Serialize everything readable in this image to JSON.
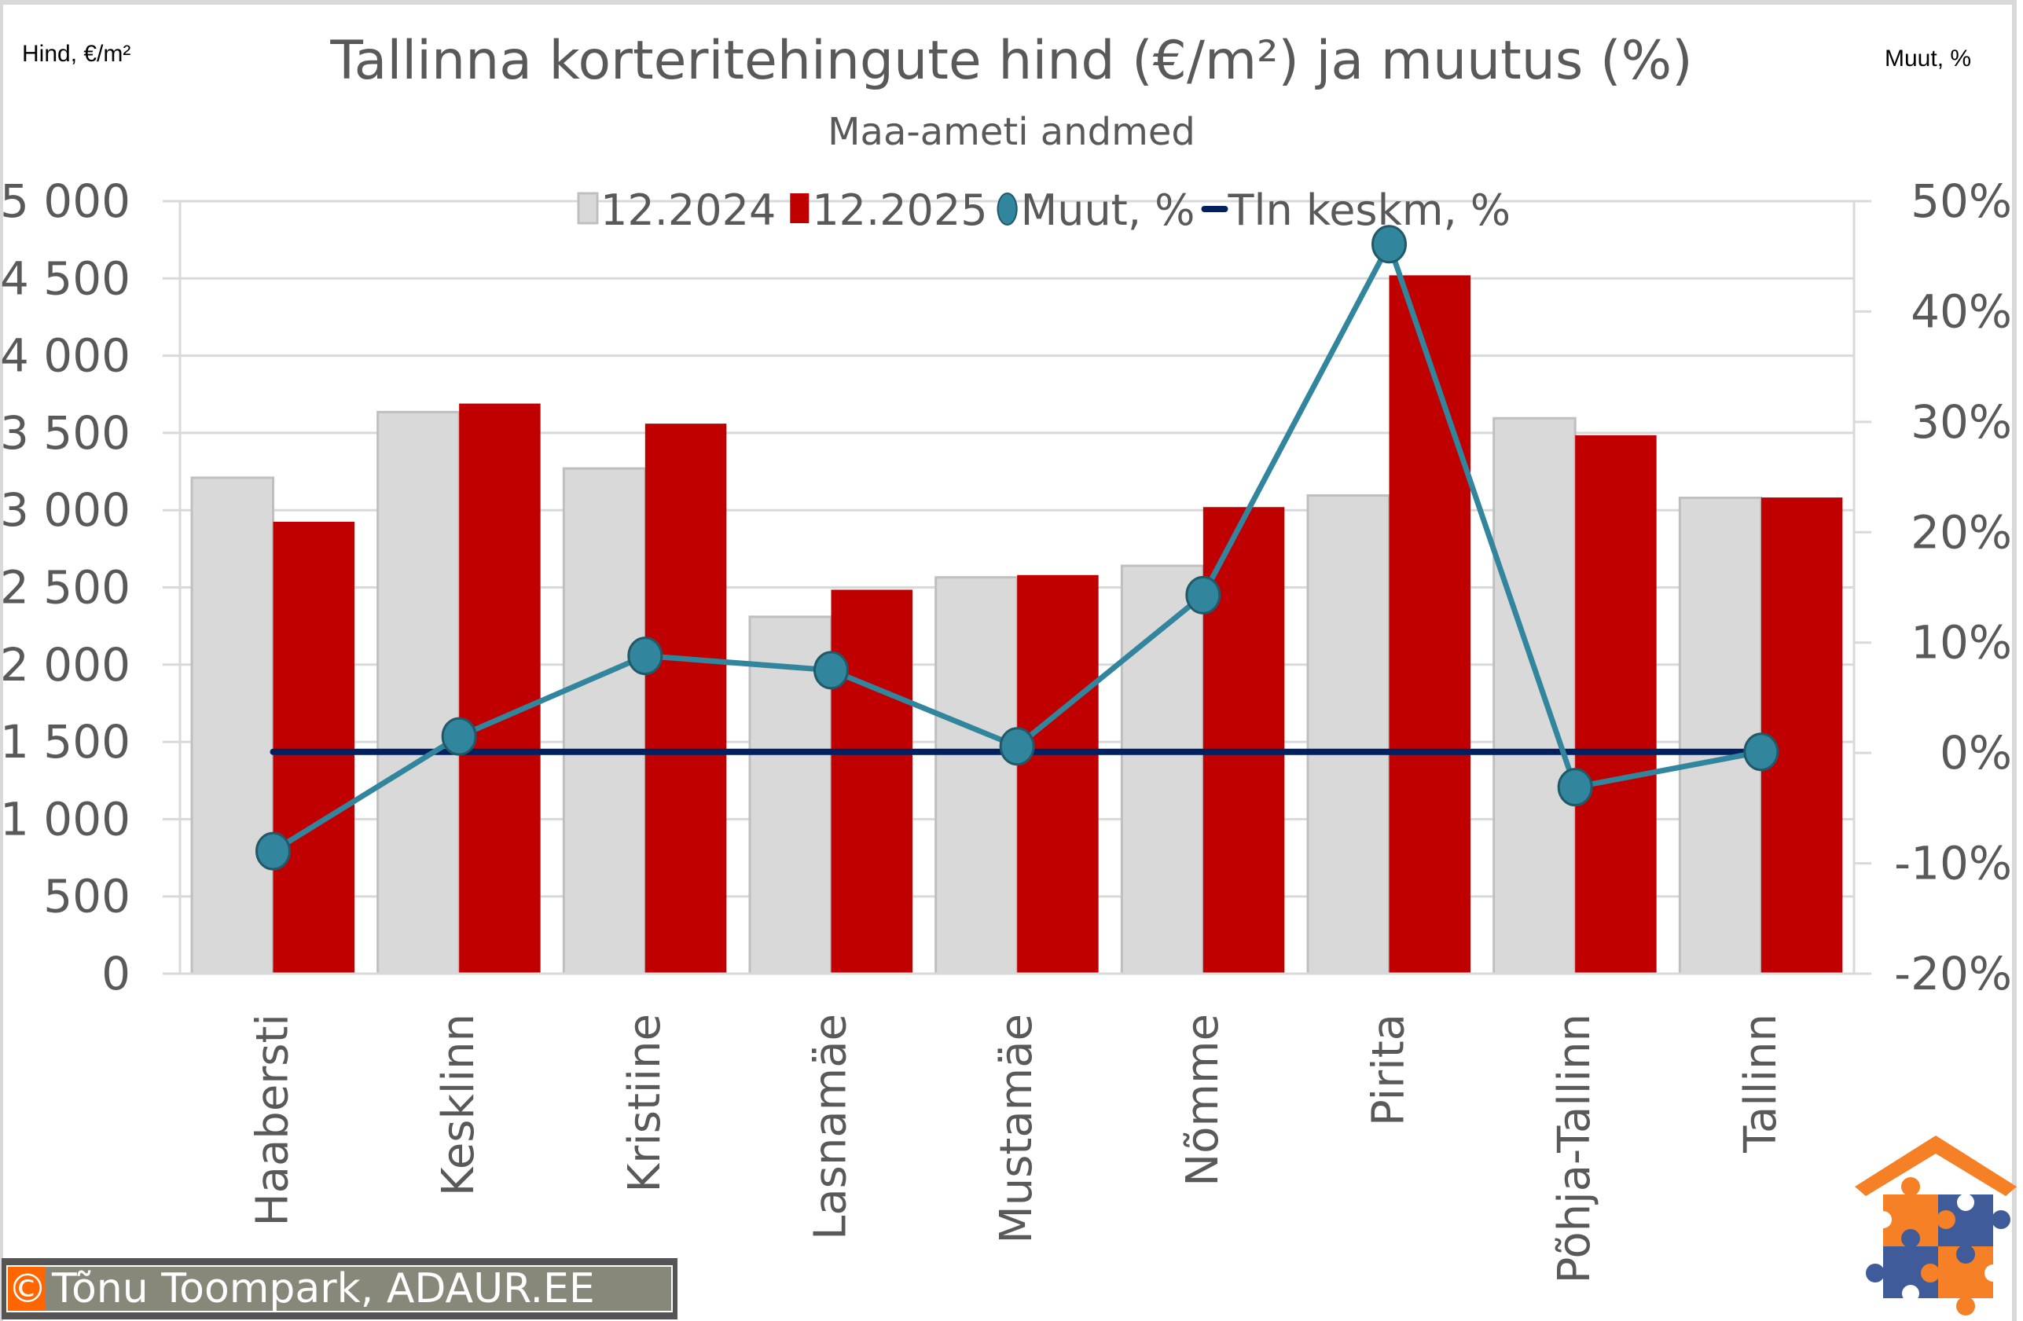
{
  "header": {
    "title": "Tallinna korteritehingute hind (€/m²) ja muutus (%)",
    "subtitle": "Maa-ameti andmed",
    "left_axis_unit": "Hind, €/m²",
    "right_axis_unit": "Muut, %"
  },
  "legend": {
    "items": [
      {
        "label": "12.2024",
        "type": "bar",
        "color": "#d9d9d9"
      },
      {
        "label": "12.2025",
        "type": "bar",
        "color": "#c00000"
      },
      {
        "label": "Muut, %",
        "type": "line-marker",
        "color": "#31859c"
      },
      {
        "label": "Tln keskm, %",
        "type": "line",
        "color": "#002060"
      }
    ]
  },
  "footer": {
    "copyright_symbol": "©",
    "copyright_text": "Tõnu Toompark, ADAUR.EE"
  },
  "logo": {
    "name": "adaur-house-puzzle-logo",
    "colors": [
      "#f58025",
      "#3f5b9a"
    ]
  },
  "chart_data": {
    "type": "bar",
    "title": "Tallinna korteritehingute hind (€/m²) ja muutus (%)",
    "subtitle": "Maa-ameti andmed",
    "xlabel": "",
    "ylabel": "Hind, €/m²",
    "y2label": "Muut, %",
    "categories": [
      "Haabersti",
      "Kesklinn",
      "Kristiine",
      "Lasnamäe",
      "Mustamäe",
      "Nõmme",
      "Pirita",
      "Põhja-Tallinn",
      "Tallinn"
    ],
    "series": [
      {
        "name": "12.2024",
        "type": "bar",
        "axis": "left",
        "color": "#d9d9d9",
        "values": [
          3210,
          3635,
          3270,
          2310,
          2565,
          2640,
          3095,
          3595,
          3080
        ]
      },
      {
        "name": "12.2025",
        "type": "bar",
        "axis": "left",
        "color": "#c00000",
        "values": [
          2925,
          3690,
          3560,
          2485,
          2580,
          3020,
          4520,
          3485,
          3082
        ]
      },
      {
        "name": "Muut, %",
        "type": "line",
        "axis": "right",
        "color": "#31859c",
        "marker": "circle",
        "values": [
          -8.9,
          1.5,
          8.8,
          7.5,
          0.6,
          14.3,
          46.1,
          -3.1,
          0.1
        ]
      },
      {
        "name": "Tln keskm, %",
        "type": "line",
        "axis": "right",
        "color": "#002060",
        "values": [
          0.1,
          0.1,
          0.1,
          0.1,
          0.1,
          0.1,
          0.1,
          0.1,
          0.1
        ]
      }
    ],
    "ylim": [
      0,
      5000
    ],
    "yticks": [
      "0",
      "500",
      "1 000",
      "1 500",
      "2 000",
      "2 500",
      "3 000",
      "3 500",
      "4 000",
      "4 500",
      "5 000"
    ],
    "y2lim": [
      -20,
      50
    ],
    "y2ticks": [
      "-20%",
      "-10%",
      "0%",
      "10%",
      "20%",
      "30%",
      "40%",
      "50%"
    ],
    "grid": true,
    "legend_position": "top"
  }
}
